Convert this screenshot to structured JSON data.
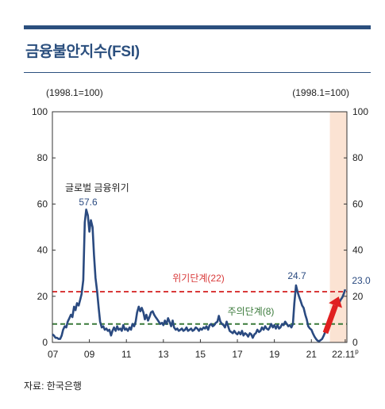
{
  "title": "금융불안지수(FSI)",
  "source": "자료: 한국은행",
  "colors": {
    "brand": "#2b4f7e",
    "series": "#2a4a80",
    "crisis": "#d93a3a",
    "caution": "#3a7a3a",
    "shade": "#fbe3d3",
    "arrow": "#e02020"
  },
  "chart_data": {
    "type": "line",
    "unit_note_left": "(1998.1=100)",
    "unit_note_right": "(1998.1=100)",
    "ylim": [
      0,
      100
    ],
    "yticks": [
      "0",
      "20",
      "40",
      "60",
      "80",
      "100"
    ],
    "xlim": [
      2007.0,
      2022.92
    ],
    "xticks": [
      {
        "x": 2007,
        "label": "07"
      },
      {
        "x": 2009,
        "label": "09"
      },
      {
        "x": 2011,
        "label": "11"
      },
      {
        "x": 2013,
        "label": "13"
      },
      {
        "x": 2015,
        "label": "15"
      },
      {
        "x": 2017,
        "label": "17"
      },
      {
        "x": 2019,
        "label": "19"
      },
      {
        "x": 2021,
        "label": "21"
      },
      {
        "x": 2022.83,
        "label": "22.11",
        "superscript": "p"
      }
    ],
    "shaded_region": [
      2022.0,
      2022.92
    ],
    "thresholds": [
      {
        "name": "위기단계(22)",
        "value": 22,
        "color": "#d93a3a"
      },
      {
        "name": "주의단계(8)",
        "value": 8,
        "color": "#3a7a3a"
      }
    ],
    "annotations": [
      {
        "text": "글로벌 금융위기",
        "x": 2008.75,
        "y": 65
      },
      {
        "text": "57.6",
        "x": 2008.9,
        "y": 57.6
      },
      {
        "text": "24.7",
        "x": 2020.25,
        "y": 24.7
      },
      {
        "text": "23.0",
        "x": 2022.83,
        "y": 23.0
      }
    ],
    "series": [
      {
        "values": [
          [
            2007.0,
            3.5
          ],
          [
            2007.08,
            3.0
          ],
          [
            2007.17,
            2.0
          ],
          [
            2007.25,
            2.0
          ],
          [
            2007.33,
            1.5
          ],
          [
            2007.42,
            1.5
          ],
          [
            2007.5,
            3.0
          ],
          [
            2007.58,
            5.5
          ],
          [
            2007.67,
            7.0
          ],
          [
            2007.75,
            6.5
          ],
          [
            2007.83,
            9.0
          ],
          [
            2007.92,
            10.5
          ],
          [
            2008.0,
            12.0
          ],
          [
            2008.08,
            11.0
          ],
          [
            2008.17,
            15.5
          ],
          [
            2008.25,
            14.0
          ],
          [
            2008.33,
            17.0
          ],
          [
            2008.42,
            16.0
          ],
          [
            2008.5,
            18.5
          ],
          [
            2008.58,
            21.0
          ],
          [
            2008.67,
            27.0
          ],
          [
            2008.75,
            52.0
          ],
          [
            2008.83,
            57.6
          ],
          [
            2008.92,
            55.0
          ],
          [
            2009.0,
            48.0
          ],
          [
            2009.08,
            53.0
          ],
          [
            2009.17,
            50.0
          ],
          [
            2009.25,
            38.0
          ],
          [
            2009.33,
            28.0
          ],
          [
            2009.42,
            22.0
          ],
          [
            2009.5,
            15.0
          ],
          [
            2009.58,
            9.0
          ],
          [
            2009.67,
            6.5
          ],
          [
            2009.75,
            7.0
          ],
          [
            2009.83,
            5.5
          ],
          [
            2009.92,
            6.0
          ],
          [
            2010.0,
            5.0
          ],
          [
            2010.08,
            5.5
          ],
          [
            2010.17,
            3.0
          ],
          [
            2010.25,
            5.0
          ],
          [
            2010.33,
            6.5
          ],
          [
            2010.42,
            5.0
          ],
          [
            2010.5,
            7.0
          ],
          [
            2010.58,
            5.5
          ],
          [
            2010.67,
            6.0
          ],
          [
            2010.75,
            5.0
          ],
          [
            2010.83,
            7.5
          ],
          [
            2010.92,
            5.5
          ],
          [
            2011.0,
            6.0
          ],
          [
            2011.08,
            5.0
          ],
          [
            2011.17,
            6.5
          ],
          [
            2011.25,
            5.5
          ],
          [
            2011.33,
            8.0
          ],
          [
            2011.42,
            7.0
          ],
          [
            2011.5,
            9.0
          ],
          [
            2011.58,
            13.0
          ],
          [
            2011.67,
            15.5
          ],
          [
            2011.75,
            13.5
          ],
          [
            2011.83,
            15.0
          ],
          [
            2011.92,
            13.0
          ],
          [
            2012.0,
            10.0
          ],
          [
            2012.08,
            12.0
          ],
          [
            2012.17,
            9.5
          ],
          [
            2012.25,
            11.0
          ],
          [
            2012.33,
            13.0
          ],
          [
            2012.42,
            13.5
          ],
          [
            2012.5,
            12.0
          ],
          [
            2012.58,
            11.0
          ],
          [
            2012.67,
            10.0
          ],
          [
            2012.75,
            9.0
          ],
          [
            2012.83,
            8.0
          ],
          [
            2012.92,
            8.5
          ],
          [
            2013.0,
            7.5
          ],
          [
            2013.08,
            9.5
          ],
          [
            2013.17,
            8.0
          ],
          [
            2013.25,
            10.5
          ],
          [
            2013.33,
            9.0
          ],
          [
            2013.42,
            7.0
          ],
          [
            2013.5,
            9.5
          ],
          [
            2013.58,
            6.5
          ],
          [
            2013.67,
            5.5
          ],
          [
            2013.75,
            6.0
          ],
          [
            2013.83,
            5.0
          ],
          [
            2013.92,
            5.5
          ],
          [
            2014.0,
            6.0
          ],
          [
            2014.08,
            5.0
          ],
          [
            2014.17,
            5.5
          ],
          [
            2014.25,
            6.5
          ],
          [
            2014.33,
            5.0
          ],
          [
            2014.42,
            5.5
          ],
          [
            2014.5,
            6.0
          ],
          [
            2014.58,
            5.0
          ],
          [
            2014.67,
            5.5
          ],
          [
            2014.75,
            6.5
          ],
          [
            2014.83,
            6.0
          ],
          [
            2014.92,
            5.0
          ],
          [
            2015.0,
            6.0
          ],
          [
            2015.08,
            5.5
          ],
          [
            2015.17,
            6.5
          ],
          [
            2015.25,
            6.0
          ],
          [
            2015.33,
            7.0
          ],
          [
            2015.42,
            5.5
          ],
          [
            2015.5,
            7.5
          ],
          [
            2015.58,
            8.0
          ],
          [
            2015.67,
            7.0
          ],
          [
            2015.75,
            7.5
          ],
          [
            2015.83,
            8.5
          ],
          [
            2015.92,
            9.0
          ],
          [
            2016.0,
            11.5
          ],
          [
            2016.08,
            9.0
          ],
          [
            2016.17,
            8.0
          ],
          [
            2016.25,
            7.5
          ],
          [
            2016.33,
            6.5
          ],
          [
            2016.42,
            9.0
          ],
          [
            2016.5,
            7.0
          ],
          [
            2016.58,
            5.0
          ],
          [
            2016.67,
            4.5
          ],
          [
            2016.75,
            4.0
          ],
          [
            2016.83,
            5.0
          ],
          [
            2016.92,
            4.0
          ],
          [
            2017.0,
            3.5
          ],
          [
            2017.08,
            4.5
          ],
          [
            2017.17,
            3.5
          ],
          [
            2017.25,
            5.0
          ],
          [
            2017.33,
            3.0
          ],
          [
            2017.42,
            4.0
          ],
          [
            2017.5,
            3.5
          ],
          [
            2017.58,
            2.5
          ],
          [
            2017.67,
            4.0
          ],
          [
            2017.75,
            3.5
          ],
          [
            2017.83,
            2.0
          ],
          [
            2017.92,
            3.5
          ],
          [
            2018.0,
            4.0
          ],
          [
            2018.08,
            5.5
          ],
          [
            2018.17,
            4.5
          ],
          [
            2018.25,
            5.0
          ],
          [
            2018.33,
            6.5
          ],
          [
            2018.42,
            5.5
          ],
          [
            2018.5,
            7.0
          ],
          [
            2018.58,
            6.0
          ],
          [
            2018.67,
            5.5
          ],
          [
            2018.75,
            6.5
          ],
          [
            2018.83,
            8.0
          ],
          [
            2018.92,
            6.5
          ],
          [
            2019.0,
            7.5
          ],
          [
            2019.08,
            6.0
          ],
          [
            2019.17,
            7.5
          ],
          [
            2019.25,
            6.0
          ],
          [
            2019.33,
            6.5
          ],
          [
            2019.42,
            8.0
          ],
          [
            2019.5,
            7.5
          ],
          [
            2019.58,
            9.0
          ],
          [
            2019.67,
            8.0
          ],
          [
            2019.75,
            7.0
          ],
          [
            2019.83,
            7.5
          ],
          [
            2019.92,
            6.5
          ],
          [
            2020.0,
            8.0
          ],
          [
            2020.08,
            17.0
          ],
          [
            2020.17,
            24.7
          ],
          [
            2020.25,
            22.0
          ],
          [
            2020.33,
            20.0
          ],
          [
            2020.42,
            18.0
          ],
          [
            2020.5,
            16.0
          ],
          [
            2020.58,
            15.0
          ],
          [
            2020.67,
            12.0
          ],
          [
            2020.75,
            10.0
          ],
          [
            2020.83,
            7.0
          ],
          [
            2020.92,
            6.0
          ],
          [
            2021.0,
            5.5
          ],
          [
            2021.08,
            4.0
          ],
          [
            2021.17,
            2.5
          ],
          [
            2021.25,
            1.5
          ],
          [
            2021.33,
            0.8
          ],
          [
            2021.42,
            0.5
          ],
          [
            2021.5,
            1.0
          ],
          [
            2021.58,
            1.5
          ],
          [
            2021.67,
            3.0
          ],
          [
            2021.75,
            4.5
          ],
          [
            2021.83,
            5.5
          ],
          [
            2021.92,
            6.5
          ],
          [
            2022.0,
            8.0
          ],
          [
            2022.08,
            10.0
          ],
          [
            2022.17,
            12.0
          ],
          [
            2022.25,
            13.0
          ],
          [
            2022.33,
            15.0
          ],
          [
            2022.42,
            18.0
          ],
          [
            2022.5,
            17.0
          ],
          [
            2022.58,
            18.5
          ],
          [
            2022.67,
            19.5
          ],
          [
            2022.75,
            21.0
          ],
          [
            2022.83,
            23.0
          ]
        ]
      }
    ]
  }
}
